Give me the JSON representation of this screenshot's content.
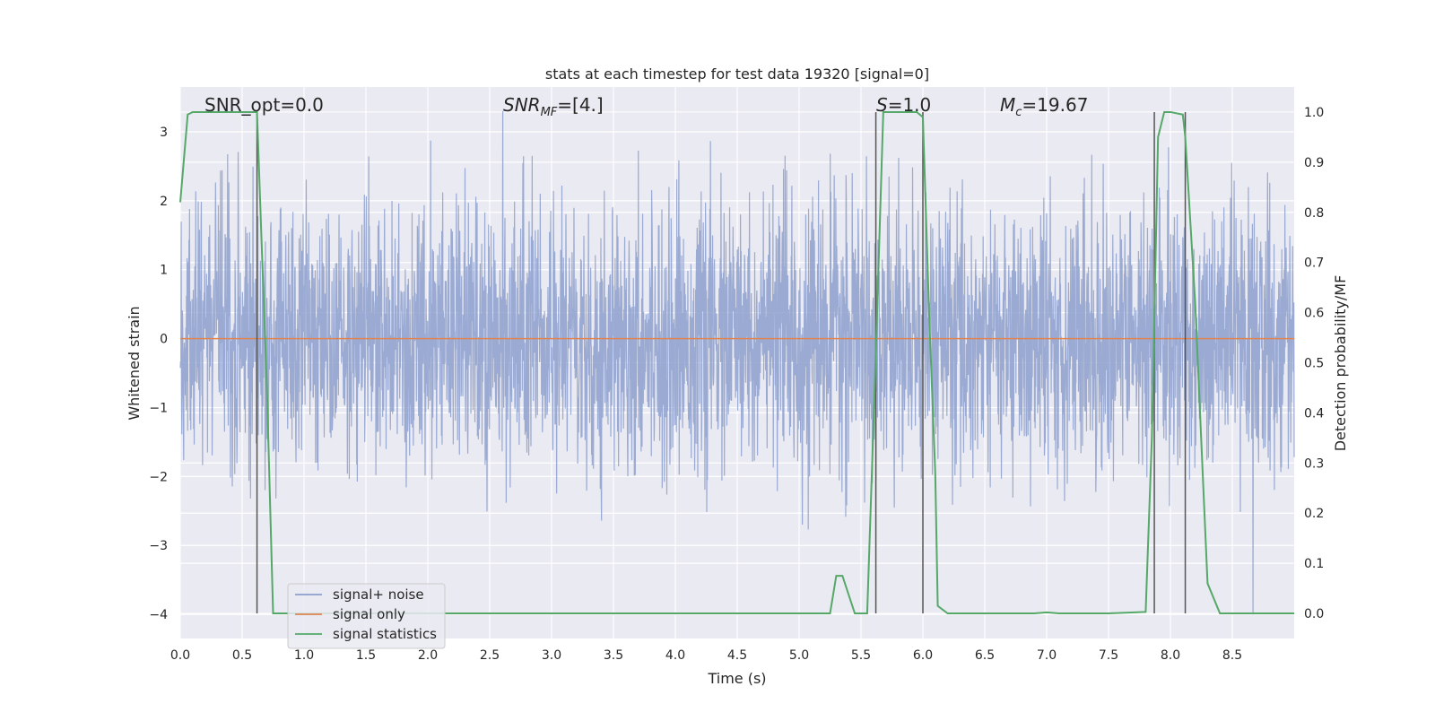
{
  "chart_data": {
    "type": "line",
    "title": "stats at each timestep for test data 19320 [signal=0]",
    "xlabel": "Time (s)",
    "ylabel_left": "Whitened strain",
    "ylabel_right": "Detection probability/MF",
    "xlim": [
      0.0,
      9.0
    ],
    "ylim_left": [
      -4.35,
      3.65
    ],
    "ylim_right": [
      -0.05,
      1.05
    ],
    "xticks": [
      "0.0",
      "0.5",
      "1.0",
      "1.5",
      "2.0",
      "2.5",
      "3.0",
      "3.5",
      "4.0",
      "4.5",
      "5.0",
      "5.5",
      "6.0",
      "6.5",
      "7.0",
      "7.5",
      "8.0",
      "8.5"
    ],
    "yticks_left": [
      "3",
      "2",
      "1",
      "0",
      "−1",
      "−2",
      "−3",
      "−4"
    ],
    "yticks_right": [
      "1.0",
      "0.9",
      "0.8",
      "0.7",
      "0.6",
      "0.5",
      "0.4",
      "0.3",
      "0.2",
      "0.1",
      "0.0"
    ],
    "grid": true,
    "legend_position": "lower-left",
    "annotations": {
      "snr_opt": "SNR_opt=0.0",
      "snr_mf": "=[4.]",
      "s_value": "=1.0",
      "mc_value": "=19.67"
    },
    "series": [
      {
        "name": "signal+ noise",
        "color": "#8c9fcc",
        "axis": "left",
        "description_envelope": "whitened noise, roughly between -2 and 2 with spikes to about ±3.3",
        "approx_range": [
          -4.0,
          3.3
        ]
      },
      {
        "name": "signal only",
        "color": "#dd8452",
        "axis": "left",
        "x": [
          0.0,
          9.0
        ],
        "y": [
          0.0,
          0.0
        ]
      },
      {
        "name": "signal statistics",
        "color": "#55a868",
        "axis": "right",
        "x": [
          0.0,
          0.06,
          0.1,
          0.3,
          0.5,
          0.6,
          0.62,
          0.66,
          0.7,
          0.75,
          1.0,
          2.0,
          3.0,
          4.0,
          5.0,
          5.25,
          5.3,
          5.35,
          5.45,
          5.55,
          5.62,
          5.68,
          5.7,
          5.8,
          5.9,
          5.95,
          6.0,
          6.05,
          6.1,
          6.12,
          6.2,
          6.5,
          6.9,
          7.0,
          7.1,
          7.5,
          7.8,
          7.85,
          7.9,
          7.95,
          8.0,
          8.1,
          8.12,
          8.2,
          8.3,
          8.4,
          9.0
        ],
        "y": [
          0.82,
          0.995,
          1.0,
          1.0,
          1.0,
          1.0,
          1.0,
          0.72,
          0.45,
          0.0,
          0.0,
          0.0,
          0.0,
          0.0,
          0.0,
          0.0,
          0.075,
          0.075,
          0.0,
          0.0,
          0.52,
          1.0,
          1.0,
          1.0,
          1.0,
          1.0,
          0.99,
          0.6,
          0.28,
          0.015,
          0.0,
          0.0,
          0.0,
          0.002,
          0.0,
          0.0,
          0.003,
          0.35,
          0.95,
          1.0,
          1.0,
          0.995,
          0.95,
          0.62,
          0.06,
          0.0,
          0.0
        ]
      }
    ],
    "vertical_lines": {
      "color": "#555555",
      "x": [
        0.62,
        5.62,
        6.0,
        7.87,
        8.12
      ]
    }
  }
}
